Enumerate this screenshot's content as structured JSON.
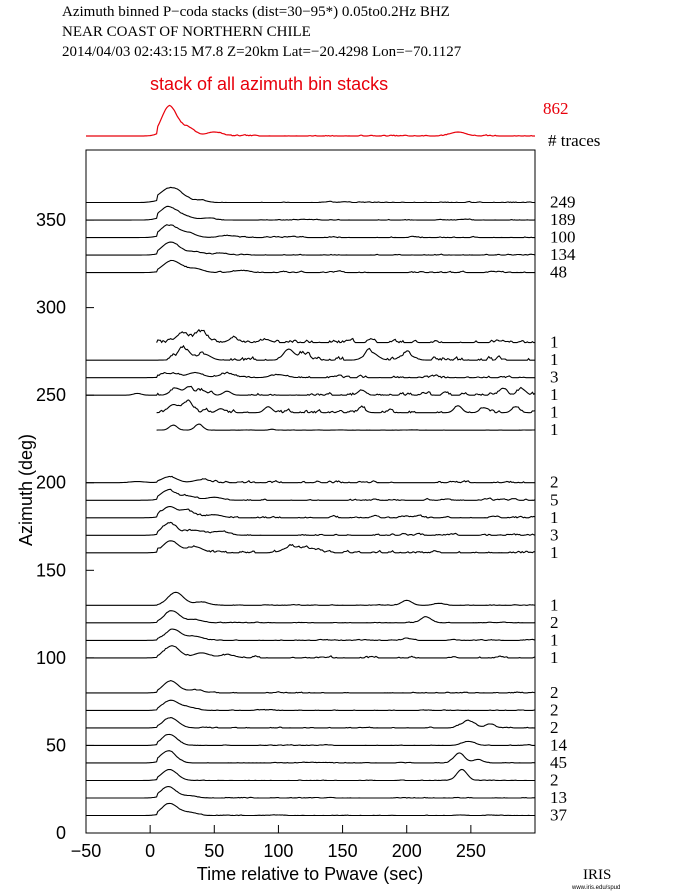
{
  "header": {
    "line1": "Azimuth binned P−coda stacks (dist=30−95*)  0.05to0.2Hz  BHZ",
    "line2": "NEAR COAST OF NORTHERN CHILE",
    "line3": "2014/04/03  02:43:15  M7.8  Z=20km Lat=−20.4298 Lon=−70.1127"
  },
  "top_stack": {
    "label": "stack of all azimuth bin stacks",
    "count": "862",
    "count_header": "# traces",
    "color": "#e8000b"
  },
  "logo": {
    "text": "IRIS",
    "subtext": "www.iris.edu/spud"
  },
  "chart_data": {
    "type": "line",
    "xlabel": "Time relative to Pwave (sec)",
    "ylabel": "Azimuth (deg)",
    "xlim": [
      -50,
      300
    ],
    "ylim": [
      0,
      390
    ],
    "xticks": [
      -50,
      0,
      50,
      100,
      150,
      200,
      250
    ],
    "xticklabels": [
      "−50",
      "0",
      "50",
      "100",
      "150",
      "200",
      "250"
    ],
    "yticks": [
      0,
      50,
      100,
      150,
      200,
      250,
      300,
      350
    ],
    "yticklabels": [
      "0",
      "50",
      "100",
      "150",
      "200",
      "250",
      "300",
      "350"
    ],
    "grid": false,
    "trace_color": "#000000",
    "stack_color": "#e8000b",
    "traces": [
      {
        "azimuth": 360,
        "count": "249",
        "t_start": -50,
        "peaks": [
          [
            15,
            14,
            8
          ],
          [
            25,
            3,
            6
          ],
          [
            40,
            2,
            5
          ]
        ],
        "noise": 0.6
      },
      {
        "azimuth": 350,
        "count": "189",
        "t_start": -50,
        "peaks": [
          [
            14,
            13,
            7
          ],
          [
            28,
            3,
            6
          ],
          [
            45,
            2,
            5
          ]
        ],
        "noise": 0.6
      },
      {
        "azimuth": 340,
        "count": "100",
        "t_start": -50,
        "peaks": [
          [
            15,
            12,
            7
          ],
          [
            30,
            4,
            6
          ],
          [
            60,
            2,
            6
          ]
        ],
        "noise": 0.8
      },
      {
        "azimuth": 330,
        "count": "134",
        "t_start": -50,
        "peaks": [
          [
            16,
            13,
            7
          ],
          [
            35,
            3,
            6
          ],
          [
            55,
            2,
            5
          ]
        ],
        "noise": 0.7
      },
      {
        "azimuth": 320,
        "count": "48",
        "t_start": -50,
        "peaks": [
          [
            17,
            12,
            7
          ],
          [
            35,
            4,
            6
          ],
          [
            70,
            2,
            6
          ]
        ],
        "noise": 1.0
      },
      {
        "azimuth": 280,
        "count": "1",
        "t_start": 5,
        "peaks": [
          [
            25,
            9,
            5
          ],
          [
            40,
            10,
            5
          ],
          [
            65,
            4,
            4
          ],
          [
            90,
            3,
            4
          ]
        ],
        "noise": 2.5
      },
      {
        "azimuth": 270,
        "count": "1",
        "t_start": -50,
        "peaks": [
          [
            26,
            10,
            5
          ],
          [
            42,
            6,
            5
          ],
          [
            108,
            11,
            4
          ],
          [
            120,
            6,
            4
          ],
          [
            172,
            8,
            5
          ],
          [
            200,
            6,
            5
          ]
        ],
        "noise": 3.0
      },
      {
        "azimuth": 260,
        "count": "3",
        "t_start": -50,
        "peaks": [
          [
            15,
            4,
            6
          ],
          [
            35,
            5,
            6
          ],
          [
            60,
            4,
            6
          ],
          [
            100,
            3,
            6
          ]
        ],
        "noise": 1.6
      },
      {
        "azimuth": 250,
        "count": "1",
        "t_start": -50,
        "peaks": [
          [
            -10,
            6,
            3
          ],
          [
            20,
            7,
            4
          ],
          [
            30,
            8,
            3
          ],
          [
            40,
            5,
            4
          ],
          [
            60,
            4,
            3
          ],
          [
            165,
            5,
            3
          ],
          [
            275,
            7,
            3
          ],
          [
            290,
            6,
            3
          ]
        ],
        "noise": 2.5
      },
      {
        "azimuth": 240,
        "count": "1",
        "t_start": 5,
        "peaks": [
          [
            18,
            8,
            4
          ],
          [
            30,
            9,
            4
          ],
          [
            55,
            4,
            3
          ],
          [
            92,
            6,
            3
          ],
          [
            165,
            4,
            3
          ],
          [
            240,
            7,
            3
          ],
          [
            260,
            5,
            3
          ],
          [
            285,
            6,
            3
          ]
        ],
        "noise": 2.5
      },
      {
        "azimuth": 230,
        "count": "1",
        "t_start": 5,
        "peaks": [
          [
            18,
            5,
            3
          ],
          [
            38,
            6,
            3
          ],
          [
            95,
            1,
            2
          ]
        ],
        "noise": 0.2
      },
      {
        "azimuth": 200,
        "count": "2",
        "t_start": -50,
        "peaks": [
          [
            -10,
            4,
            6
          ],
          [
            15,
            6,
            6
          ],
          [
            40,
            3,
            6
          ]
        ],
        "noise": 1.5
      },
      {
        "azimuth": 190,
        "count": "5",
        "t_start": -50,
        "peaks": [
          [
            14,
            10,
            6
          ],
          [
            30,
            4,
            6
          ],
          [
            50,
            3,
            6
          ]
        ],
        "noise": 1.2
      },
      {
        "azimuth": 180,
        "count": "1",
        "t_start": -50,
        "peaks": [
          [
            15,
            11,
            6
          ],
          [
            30,
            5,
            6
          ],
          [
            50,
            3,
            6
          ]
        ],
        "noise": 1.4
      },
      {
        "azimuth": 170,
        "count": "3",
        "t_start": -50,
        "peaks": [
          [
            15,
            12,
            6
          ],
          [
            35,
            5,
            6
          ],
          [
            55,
            4,
            6
          ]
        ],
        "noise": 1.4
      },
      {
        "azimuth": 160,
        "count": "1",
        "t_start": -50,
        "peaks": [
          [
            16,
            12,
            6
          ],
          [
            35,
            6,
            6
          ],
          [
            110,
            6,
            6
          ],
          [
            125,
            4,
            6
          ]
        ],
        "noise": 1.8
      },
      {
        "azimuth": 130,
        "count": "1",
        "t_start": -50,
        "peaks": [
          [
            20,
            13,
            6
          ],
          [
            40,
            3,
            6
          ],
          [
            200,
            5,
            4
          ],
          [
            225,
            2,
            4
          ]
        ],
        "noise": 0.5
      },
      {
        "azimuth": 120,
        "count": "2",
        "t_start": -50,
        "peaks": [
          [
            17,
            12,
            6
          ],
          [
            35,
            3,
            6
          ],
          [
            215,
            6,
            4
          ]
        ],
        "noise": 0.5
      },
      {
        "azimuth": 110,
        "count": "1",
        "t_start": -50,
        "peaks": [
          [
            18,
            11,
            6
          ],
          [
            35,
            4,
            6
          ],
          [
            200,
            2,
            3
          ]
        ],
        "noise": 0.6
      },
      {
        "azimuth": 100,
        "count": "1",
        "t_start": -50,
        "peaks": [
          [
            17,
            12,
            6
          ],
          [
            40,
            5,
            6
          ],
          [
            60,
            3,
            6
          ]
        ],
        "noise": 1.6
      },
      {
        "azimuth": 80,
        "count": "2",
        "t_start": -50,
        "peaks": [
          [
            16,
            12,
            6
          ],
          [
            35,
            3,
            6
          ]
        ],
        "noise": 0.8
      },
      {
        "azimuth": 70,
        "count": "2",
        "t_start": -50,
        "peaks": [
          [
            16,
            10,
            6
          ],
          [
            30,
            3,
            6
          ]
        ],
        "noise": 0.5
      },
      {
        "azimuth": 60,
        "count": "2",
        "t_start": -50,
        "peaks": [
          [
            16,
            10,
            6
          ],
          [
            248,
            7,
            5
          ],
          [
            265,
            3,
            4
          ]
        ],
        "noise": 0.7
      },
      {
        "azimuth": 50,
        "count": "14",
        "t_start": -50,
        "peaks": [
          [
            15,
            11,
            6
          ],
          [
            248,
            4,
            5
          ]
        ],
        "noise": 0.5
      },
      {
        "azimuth": 40,
        "count": "45",
        "t_start": -50,
        "peaks": [
          [
            14,
            12,
            6
          ],
          [
            241,
            10,
            4
          ],
          [
            255,
            3,
            4
          ]
        ],
        "noise": 0.5
      },
      {
        "azimuth": 30,
        "count": "2",
        "t_start": -50,
        "peaks": [
          [
            15,
            11,
            6
          ],
          [
            243,
            11,
            4
          ]
        ],
        "noise": 0.4
      },
      {
        "azimuth": 20,
        "count": "13",
        "t_start": -50,
        "peaks": [
          [
            14,
            11,
            6
          ],
          [
            30,
            2,
            6
          ]
        ],
        "noise": 0.5
      },
      {
        "azimuth": 10,
        "count": "37",
        "t_start": -50,
        "peaks": [
          [
            15,
            12,
            6
          ],
          [
            30,
            3,
            6
          ]
        ],
        "noise": 0.4
      }
    ],
    "stack": {
      "peaks": [
        [
          15,
          30,
          6
        ],
        [
          30,
          8,
          5
        ],
        [
          50,
          4,
          6
        ],
        [
          240,
          4,
          6
        ]
      ],
      "noise": 0.8
    }
  }
}
